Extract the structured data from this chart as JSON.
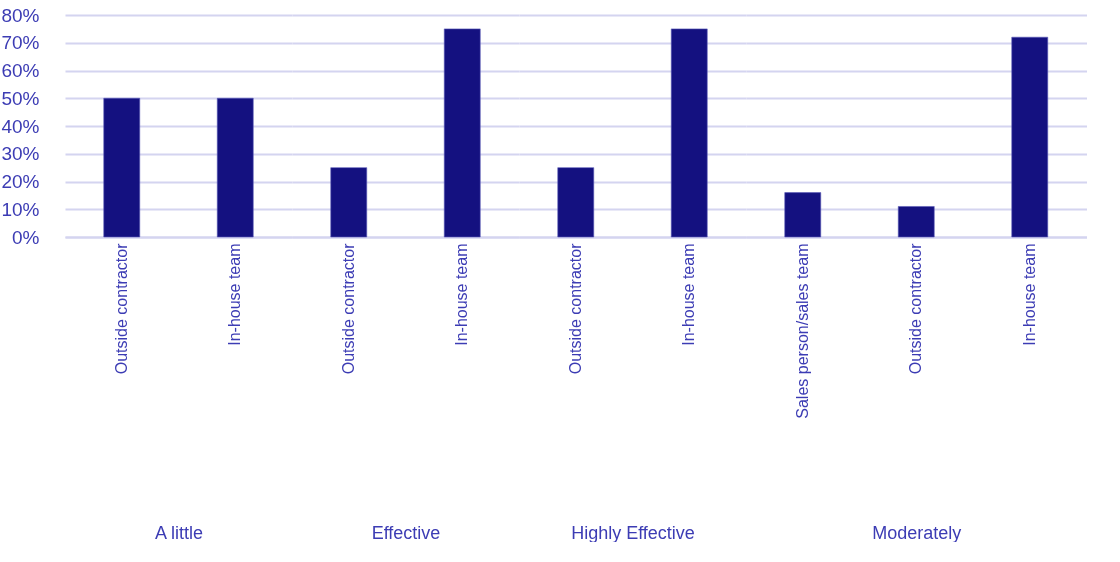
{
  "chart_data": [
    {
      "type": "bar",
      "xlabel": "A little",
      "categories": [
        "Outside contractor",
        "In-house team"
      ],
      "values": [
        50,
        50
      ],
      "color": "#141180",
      "ylim": [
        0,
        80
      ],
      "yticks": [
        {
          "value": 0,
          "label": "0%"
        },
        {
          "value": 10,
          "label": "10%"
        },
        {
          "value": 20,
          "label": "20%"
        },
        {
          "value": 30,
          "label": "30%"
        },
        {
          "value": 40,
          "label": "40%"
        },
        {
          "value": 50,
          "label": "50%"
        },
        {
          "value": 60,
          "label": "60%"
        },
        {
          "value": 70,
          "label": "70%"
        },
        {
          "value": 80,
          "label": "80%"
        }
      ],
      "grid": "y"
    },
    {
      "type": "bar",
      "xlabel": "Effective",
      "categories": [
        "Outside contractor",
        "In-house team"
      ],
      "values": [
        25,
        75
      ],
      "color": "#141180",
      "ylim": [
        0,
        80
      ],
      "yticks": [
        {
          "value": 0,
          "label": null
        },
        {
          "value": 10,
          "label": null
        },
        {
          "value": 20,
          "label": null
        },
        {
          "value": 30,
          "label": null
        },
        {
          "value": 40,
          "label": null
        },
        {
          "value": 50,
          "label": null
        },
        {
          "value": 60,
          "label": null
        },
        {
          "value": 70,
          "label": null
        },
        {
          "value": 80,
          "label": null
        }
      ],
      "grid": "y",
      "tick_labels": "x"
    },
    {
      "type": "bar",
      "xlabel": "Highly Effective",
      "categories": [
        "Outside contractor",
        "In-house team"
      ],
      "values": [
        25,
        75
      ],
      "color": "#141180",
      "ylim": [
        0,
        80
      ],
      "yticks": [
        {
          "value": 0,
          "label": null
        },
        {
          "value": 10,
          "label": null
        },
        {
          "value": 20,
          "label": null
        },
        {
          "value": 30,
          "label": null
        },
        {
          "value": 40,
          "label": null
        },
        {
          "value": 50,
          "label": null
        },
        {
          "value": 60,
          "label": null
        },
        {
          "value": 70,
          "label": null
        },
        {
          "value": 80,
          "label": null
        }
      ],
      "grid": "y",
      "tick_labels": "x"
    },
    {
      "type": "bar",
      "xlabel": "Moderately",
      "categories": [
        "Sales person/sales team",
        "Outside contractor",
        "In-house team"
      ],
      "values": [
        16,
        11,
        72
      ],
      "color": "#141180",
      "ylim": [
        0,
        80
      ],
      "yticks": [
        {
          "value": 0,
          "label": null
        },
        {
          "value": 10,
          "label": null
        },
        {
          "value": 20,
          "label": null
        },
        {
          "value": 30,
          "label": null
        },
        {
          "value": 40,
          "label": null
        },
        {
          "value": 50,
          "label": null
        },
        {
          "value": 60,
          "label": null
        },
        {
          "value": 70,
          "label": null
        },
        {
          "value": 80,
          "label": null
        }
      ],
      "grid": "y",
      "tick_labels": "x"
    }
  ]
}
